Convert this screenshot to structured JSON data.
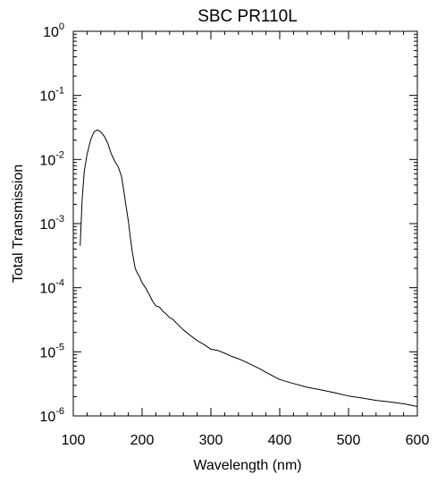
{
  "chart_data": {
    "type": "line",
    "title": "SBC PR110L",
    "xlabel": "Wavelength (nm)",
    "ylabel": "Total Transmission",
    "xlim": [
      100,
      600
    ],
    "ylim": [
      1e-06,
      1
    ],
    "yscale": "log",
    "grid": false,
    "x_ticks": [
      {
        "value": 100,
        "label": "100"
      },
      {
        "value": 200,
        "label": "200"
      },
      {
        "value": 300,
        "label": "300"
      },
      {
        "value": 400,
        "label": "400"
      },
      {
        "value": 500,
        "label": "500"
      },
      {
        "value": 600,
        "label": "600"
      }
    ],
    "y_ticks": [
      {
        "value": 1.0,
        "base": "10",
        "exp": "0"
      },
      {
        "value": 0.1,
        "base": "10",
        "exp": "-1"
      },
      {
        "value": 0.01,
        "base": "10",
        "exp": "-2"
      },
      {
        "value": 0.001,
        "base": "10",
        "exp": "-3"
      },
      {
        "value": 0.0001,
        "base": "10",
        "exp": "-4"
      },
      {
        "value": 1e-05,
        "base": "10",
        "exp": "-5"
      },
      {
        "value": 1e-06,
        "base": "10",
        "exp": "-6"
      }
    ],
    "series": [
      {
        "color": "#000000",
        "x": [
          110,
          113,
          116,
          120,
          125,
          130,
          135,
          140,
          145,
          150,
          155,
          160,
          165,
          170,
          173,
          176,
          180,
          183,
          186,
          190,
          193,
          196,
          200,
          205,
          210,
          215,
          220,
          225,
          230,
          235,
          240,
          245,
          250,
          260,
          270,
          280,
          290,
          300,
          310,
          320,
          330,
          340,
          350,
          360,
          370,
          380,
          390,
          400,
          420,
          440,
          460,
          480,
          500,
          520,
          540,
          560,
          580,
          600
        ],
        "y": [
          0.00045,
          0.0025,
          0.0065,
          0.012,
          0.02,
          0.027,
          0.029,
          0.027,
          0.023,
          0.018,
          0.0125,
          0.0095,
          0.0078,
          0.0055,
          0.0035,
          0.0021,
          0.0011,
          0.0006,
          0.00035,
          0.0002,
          0.00017,
          0.00015,
          0.00012,
          0.0001,
          8e-05,
          6.2e-05,
          5.2e-05,
          5e-05,
          4.3e-05,
          3.9e-05,
          3.4e-05,
          3.2e-05,
          2.8e-05,
          2.2e-05,
          1.8e-05,
          1.5e-05,
          1.3e-05,
          1.1e-05,
          1.05e-05,
          9.5e-06,
          8.5e-06,
          7.8e-06,
          7e-06,
          6.2e-06,
          5.5e-06,
          4.8e-06,
          4.2e-06,
          3.7e-06,
          3.2e-06,
          2.8e-06,
          2.55e-06,
          2.3e-06,
          2.05e-06,
          1.9e-06,
          1.75e-06,
          1.65e-06,
          1.55e-06,
          1.4e-06
        ]
      }
    ]
  }
}
